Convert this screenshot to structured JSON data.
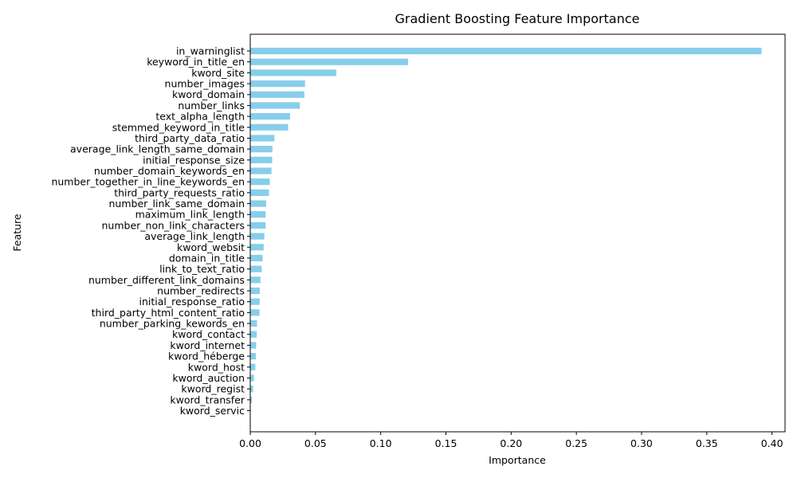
{
  "chart_data": {
    "type": "bar",
    "orientation": "horizontal",
    "title": "Gradient Boosting Feature Importance",
    "xlabel": "Importance",
    "ylabel": "Feature",
    "xlim": [
      0,
      0.41
    ],
    "xticks": [
      0.0,
      0.05,
      0.1,
      0.15,
      0.2,
      0.25,
      0.3,
      0.35,
      0.4
    ],
    "xtick_labels": [
      "0.00",
      "0.05",
      "0.10",
      "0.15",
      "0.20",
      "0.25",
      "0.30",
      "0.35",
      "0.40"
    ],
    "grid": false,
    "bar_color": "#87ceeb",
    "categories": [
      "in_warninglist",
      "keyword_in_title_en",
      "kword_site",
      "number_images",
      "kword_domain",
      "number_links",
      "text_alpha_length",
      "stemmed_keyword_in_title",
      "third_party_data_ratio",
      "average_link_length_same_domain",
      "initial_response_size",
      "number_domain_keywords_en",
      "number_together_in_line_keywords_en",
      "third_party_requests_ratio",
      "number_link_same_domain",
      "maximum_link_length",
      "number_non_link_characters",
      "average_link_length",
      "kword_websit",
      "domain_in_title",
      "link_to_text_ratio",
      "number_different_link_domains",
      "number_redirects",
      "initial_response_ratio",
      "third_party_html_content_ratio",
      "number_parking_kewords_en",
      "kword_contact",
      "kword_internet",
      "kword_héberge",
      "kword_host",
      "kword_auction",
      "kword_regist",
      "kword_transfer",
      "kword_servic"
    ],
    "values": [
      0.392,
      0.121,
      0.066,
      0.042,
      0.0415,
      0.038,
      0.0305,
      0.029,
      0.0185,
      0.017,
      0.0168,
      0.0163,
      0.015,
      0.0143,
      0.0122,
      0.0118,
      0.0118,
      0.0108,
      0.0103,
      0.0095,
      0.0088,
      0.0078,
      0.0073,
      0.0072,
      0.0071,
      0.0052,
      0.005,
      0.0045,
      0.0043,
      0.0039,
      0.0028,
      0.0022,
      0.0012,
      0.0002
    ]
  }
}
